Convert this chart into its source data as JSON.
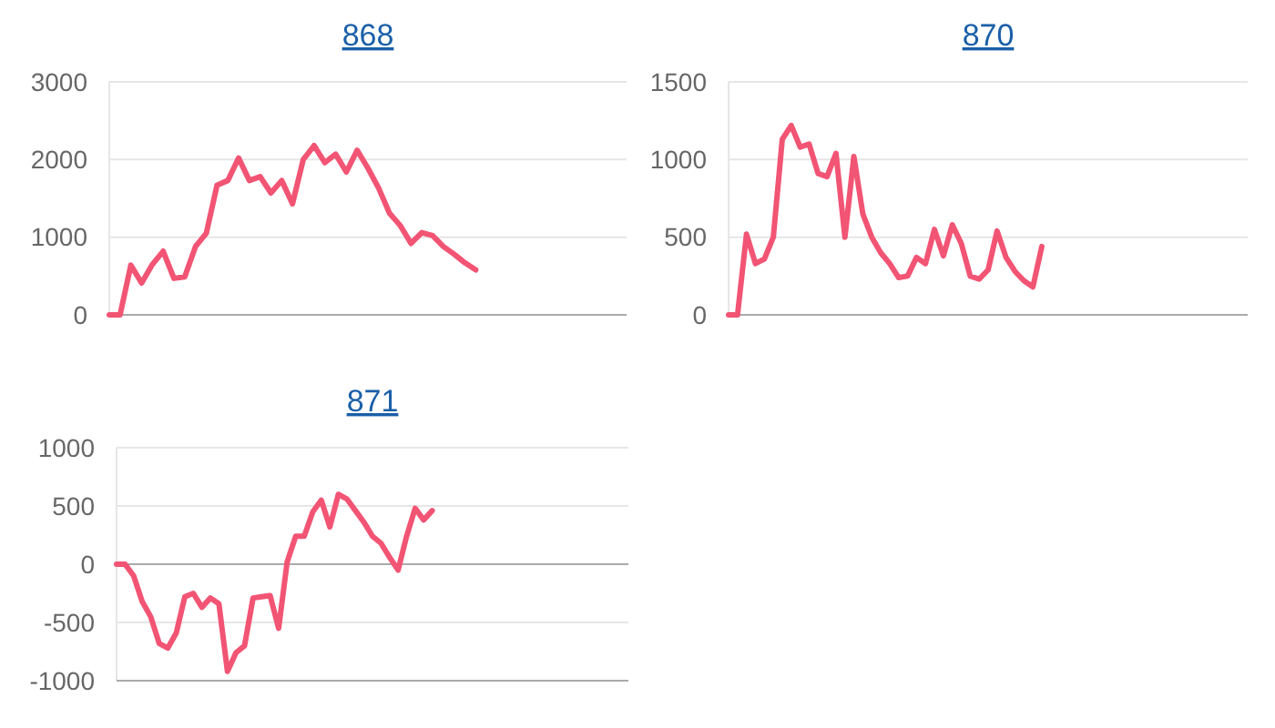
{
  "chart_data": [
    {
      "type": "line",
      "title": "868",
      "categories": [
        null,
        null,
        null,
        null,
        null,
        null,
        null,
        null,
        null,
        null,
        null,
        null,
        null,
        null,
        null,
        null,
        null,
        null,
        null,
        null,
        null,
        null,
        null,
        null,
        null,
        null,
        null,
        null,
        null,
        null,
        null,
        null,
        null,
        null,
        null,
        null,
        null,
        null,
        null,
        null,
        null,
        null,
        null,
        null,
        null,
        null,
        null,
        null,
        null
      ],
      "ylim": [
        0,
        3000
      ],
      "yticks": [
        0,
        1000,
        2000,
        3000
      ],
      "grid": "y",
      "tick_labels": "y",
      "marker": "none",
      "line_style": "solid",
      "series": [
        {
          "color": "#f25474",
          "values": [
            0,
            0,
            640,
            410,
            650,
            820,
            470,
            490,
            880,
            1050,
            1670,
            1730,
            2020,
            1730,
            1780,
            1570,
            1730,
            1430,
            2000,
            2180,
            1960,
            2070,
            1840,
            2120,
            1890,
            1630,
            1310,
            1150,
            920,
            1060,
            1020,
            880,
            780,
            670,
            580,
            null,
            null,
            null,
            null,
            null,
            null,
            null,
            null,
            null,
            null,
            null,
            null,
            null,
            null
          ]
        }
      ]
    },
    {
      "type": "line",
      "title": "870",
      "categories": [
        null,
        null,
        null,
        null,
        null,
        null,
        null,
        null,
        null,
        null,
        null,
        null,
        null,
        null,
        null,
        null,
        null,
        null,
        null,
        null,
        null,
        null,
        null,
        null,
        null,
        null,
        null,
        null,
        null,
        null,
        null,
        null,
        null,
        null,
        null,
        null,
        null,
        null,
        null,
        null,
        null,
        null,
        null,
        null,
        null,
        null,
        null,
        null,
        null,
        null,
        null,
        null,
        null,
        null,
        null,
        null,
        null,
        null,
        null
      ],
      "ylim": [
        0,
        1500
      ],
      "yticks": [
        0,
        500,
        1000,
        1500
      ],
      "grid": "y",
      "tick_labels": "y",
      "marker": "none",
      "line_style": "solid",
      "series": [
        {
          "color": "#f25474",
          "values": [
            0,
            0,
            520,
            330,
            360,
            500,
            1130,
            1220,
            1080,
            1100,
            910,
            890,
            1040,
            500,
            1020,
            650,
            500,
            400,
            330,
            240,
            250,
            370,
            330,
            550,
            380,
            580,
            460,
            250,
            230,
            290,
            540,
            370,
            280,
            220,
            180,
            440,
            null,
            null,
            null,
            null,
            null,
            null,
            null,
            null,
            null,
            null,
            null,
            null,
            null,
            null,
            null,
            null,
            null,
            null,
            null,
            null,
            null,
            null,
            null
          ]
        }
      ]
    },
    {
      "type": "line",
      "title": "871",
      "categories": [
        null,
        null,
        null,
        null,
        null,
        null,
        null,
        null,
        null,
        null,
        null,
        null,
        null,
        null,
        null,
        null,
        null,
        null,
        null,
        null,
        null,
        null,
        null,
        null,
        null,
        null,
        null,
        null,
        null,
        null,
        null,
        null,
        null,
        null,
        null,
        null,
        null,
        null,
        null,
        null,
        null,
        null,
        null,
        null,
        null,
        null,
        null,
        null,
        null,
        null,
        null,
        null,
        null,
        null,
        null,
        null,
        null,
        null,
        null,
        null,
        null
      ],
      "ylim": [
        -1000,
        1000
      ],
      "yticks": [
        -1000,
        -500,
        0,
        500,
        1000
      ],
      "grid": "y",
      "tick_labels": "y",
      "marker": "none",
      "line_style": "solid",
      "series": [
        {
          "color": "#f25474",
          "values": [
            0,
            0,
            -100,
            -320,
            -450,
            -680,
            -720,
            -590,
            -280,
            -250,
            -370,
            -290,
            -340,
            -920,
            -760,
            -700,
            -290,
            -280,
            -270,
            -550,
            20,
            240,
            240,
            450,
            550,
            320,
            600,
            560,
            460,
            360,
            240,
            180,
            60,
            -50,
            240,
            480,
            380,
            460,
            null,
            null,
            null,
            null,
            null,
            null,
            null,
            null,
            null,
            null,
            null,
            null,
            null,
            null,
            null,
            null,
            null,
            null,
            null,
            null,
            null,
            null,
            null
          ]
        }
      ]
    }
  ]
}
